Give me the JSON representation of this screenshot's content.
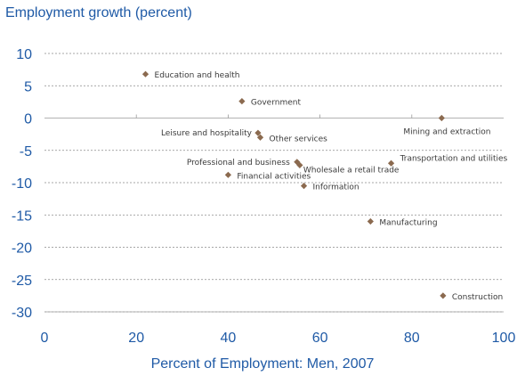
{
  "chart_data": {
    "type": "scatter",
    "title": "",
    "ylabel": "Employment growth (percent)",
    "xlabel": "Percent of Employment:  Men, 2007",
    "xlim": [
      0,
      100
    ],
    "ylim": [
      -30,
      10
    ],
    "x_ticks": [
      0,
      20,
      40,
      60,
      80,
      100
    ],
    "y_ticks": [
      10,
      5,
      0,
      -5,
      -10,
      -15,
      -20,
      -25,
      -30
    ],
    "grid": "horizontal dashed",
    "marker_color": "#8b6a4f",
    "axis_color": "#1f5aa6",
    "points": [
      {
        "label": "Education and health",
        "x": 22,
        "y": 6.8
      },
      {
        "label": "Government",
        "x": 43,
        "y": 2.6
      },
      {
        "label": "Mining and extraction",
        "x": 86.5,
        "y": 0
      },
      {
        "label": "Leisure and hospitality",
        "x": 46.5,
        "y": -2.3
      },
      {
        "label": "Other services",
        "x": 47,
        "y": -3
      },
      {
        "label": "Professional and business",
        "x": 55,
        "y": -6.8
      },
      {
        "label": "Wholesale a retail trade",
        "x": 55.6,
        "y": -7.3
      },
      {
        "label": "Transportation and utilities",
        "x": 75.5,
        "y": -7
      },
      {
        "label": "Financial activities",
        "x": 40,
        "y": -8.8
      },
      {
        "label": "Information",
        "x": 56.5,
        "y": -10.5
      },
      {
        "label": "Manufacturing",
        "x": 71,
        "y": -16
      },
      {
        "label": "Construction",
        "x": 86.8,
        "y": -27.5
      }
    ]
  }
}
